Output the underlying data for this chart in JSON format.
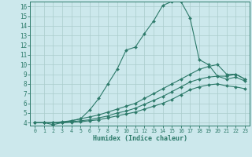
{
  "xlabel": "Humidex (Indice chaleur)",
  "bg_color": "#cce8ec",
  "line_color": "#2d7a6a",
  "grid_color": "#aacccc",
  "xlim": [
    -0.5,
    23.5
  ],
  "ylim": [
    3.7,
    16.5
  ],
  "xticks": [
    0,
    1,
    2,
    3,
    4,
    5,
    6,
    7,
    8,
    9,
    10,
    11,
    12,
    13,
    14,
    15,
    16,
    17,
    18,
    19,
    20,
    21,
    22,
    23
  ],
  "yticks": [
    4,
    5,
    6,
    7,
    8,
    9,
    10,
    11,
    12,
    13,
    14,
    15,
    16
  ],
  "line1_x": [
    0,
    1,
    2,
    3,
    4,
    5,
    6,
    7,
    8,
    9,
    10,
    11,
    12,
    13,
    14,
    15,
    16,
    17,
    18,
    19,
    20,
    21,
    22,
    23
  ],
  "line1_y": [
    4.0,
    4.0,
    3.8,
    4.0,
    4.2,
    4.4,
    5.3,
    6.5,
    8.0,
    9.5,
    11.5,
    11.8,
    13.2,
    14.5,
    16.1,
    16.5,
    16.5,
    14.8,
    10.5,
    10.0,
    8.8,
    8.8,
    9.0,
    8.5
  ],
  "line2_x": [
    0,
    1,
    2,
    3,
    4,
    5,
    6,
    7,
    8,
    9,
    10,
    11,
    12,
    13,
    14,
    15,
    16,
    17,
    18,
    19,
    20,
    21,
    22,
    23
  ],
  "line2_y": [
    4.0,
    4.0,
    4.0,
    4.1,
    4.2,
    4.4,
    4.6,
    4.8,
    5.1,
    5.4,
    5.7,
    6.0,
    6.5,
    7.0,
    7.5,
    8.0,
    8.5,
    9.0,
    9.5,
    9.8,
    10.0,
    9.0,
    9.0,
    8.5
  ],
  "line3_x": [
    0,
    1,
    2,
    3,
    4,
    5,
    6,
    7,
    8,
    9,
    10,
    11,
    12,
    13,
    14,
    15,
    16,
    17,
    18,
    19,
    20,
    21,
    22,
    23
  ],
  "line3_y": [
    4.0,
    4.0,
    4.0,
    4.0,
    4.1,
    4.2,
    4.3,
    4.5,
    4.7,
    5.0,
    5.2,
    5.5,
    5.9,
    6.3,
    6.7,
    7.2,
    7.7,
    8.2,
    8.5,
    8.7,
    8.8,
    8.5,
    8.7,
    8.3
  ],
  "line4_x": [
    0,
    1,
    2,
    3,
    4,
    5,
    6,
    7,
    8,
    9,
    10,
    11,
    12,
    13,
    14,
    15,
    16,
    17,
    18,
    19,
    20,
    21,
    22,
    23
  ],
  "line4_y": [
    4.0,
    4.0,
    4.0,
    4.0,
    4.05,
    4.1,
    4.2,
    4.3,
    4.5,
    4.7,
    4.9,
    5.1,
    5.4,
    5.7,
    6.0,
    6.4,
    6.9,
    7.4,
    7.7,
    7.9,
    8.0,
    7.8,
    7.7,
    7.5
  ]
}
